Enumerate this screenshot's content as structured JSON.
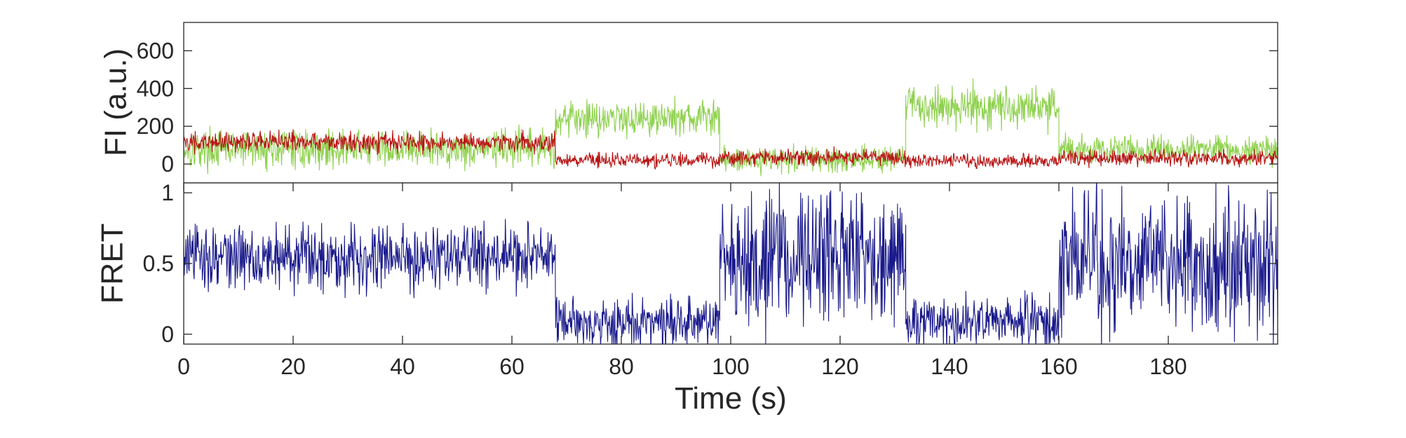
{
  "chart_data": [
    {
      "type": "line",
      "title": "",
      "xlabel": "",
      "ylabel": "FI (a.u.)",
      "xlim": [
        0,
        200
      ],
      "ylim": [
        -100,
        750
      ],
      "yticks": [
        0,
        200,
        400,
        600
      ],
      "ytick_labels": [
        "0",
        "200",
        "400",
        "600"
      ],
      "grid": false,
      "sample_interval_s": 0.1,
      "series": [
        {
          "name": "",
          "color": "#8fd14f",
          "segments": [
            {
              "x": [
                0,
                68
              ],
              "level": 80,
              "noise": 85
            },
            {
              "x": [
                68,
                98
              ],
              "level": 245,
              "noise": 80
            },
            {
              "x": [
                98,
                132
              ],
              "level": 25,
              "noise": 60
            },
            {
              "x": [
                132,
                160
              ],
              "level": 305,
              "noise": 95
            },
            {
              "x": [
                160,
                200
              ],
              "level": 75,
              "noise": 65
            }
          ]
        },
        {
          "name": "",
          "color": "#b81414",
          "segments": [
            {
              "x": [
                0,
                68
              ],
              "level": 115,
              "noise": 45
            },
            {
              "x": [
                68,
                98
              ],
              "level": 20,
              "noise": 35
            },
            {
              "x": [
                98,
                132
              ],
              "level": 35,
              "noise": 35
            },
            {
              "x": [
                132,
                160
              ],
              "level": 15,
              "noise": 30
            },
            {
              "x": [
                160,
                200
              ],
              "level": 30,
              "noise": 35
            }
          ]
        }
      ]
    },
    {
      "type": "line",
      "title": "",
      "xlabel": "Time (s)",
      "ylabel": "FRET",
      "xlim": [
        0,
        200
      ],
      "ylim": [
        -0.07,
        1.07
      ],
      "xticks": [
        0,
        20,
        40,
        60,
        80,
        100,
        120,
        140,
        160,
        180
      ],
      "xtick_labels": [
        "0",
        "20",
        "40",
        "60",
        "80",
        "100",
        "120",
        "140",
        "160",
        "180"
      ],
      "yticks": [
        0,
        0.5,
        1
      ],
      "ytick_labels": [
        "0",
        "0.5",
        "1"
      ],
      "grid": false,
      "sample_interval_s": 0.1,
      "series": [
        {
          "name": "",
          "color": "#1a1a8c",
          "segments": [
            {
              "x": [
                0,
                68
              ],
              "level": 0.55,
              "noise": 0.2
            },
            {
              "x": [
                68,
                98
              ],
              "level": 0.08,
              "noise": 0.15
            },
            {
              "x": [
                98,
                132
              ],
              "level": 0.55,
              "noise": 0.4
            },
            {
              "x": [
                132,
                160
              ],
              "level": 0.08,
              "noise": 0.15
            },
            {
              "x": [
                160,
                200
              ],
              "level": 0.5,
              "noise": 0.4
            }
          ]
        }
      ]
    }
  ]
}
